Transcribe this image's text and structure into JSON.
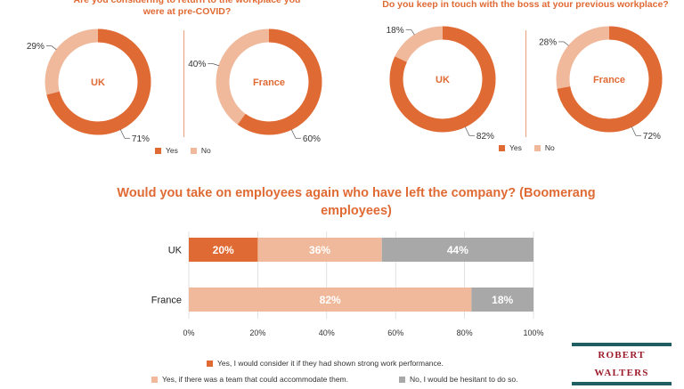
{
  "colors": {
    "yes": "#e06a34",
    "no": "#f0b99b",
    "neutral": "#a8a8a8",
    "accent": "#e06a34"
  },
  "q1": {
    "title": "Are you considering to return to the workplace you were at pre-COVID?",
    "legend": {
      "yes": "Yes",
      "no": "No"
    }
  },
  "q2": {
    "title": "Do you keep in touch with the boss at your previous workplace?",
    "legend": {
      "yes": "Yes",
      "no": "No"
    }
  },
  "boomerang": {
    "title": "Would you take on employees again who have left the company? (Boomerang employees)",
    "legend": [
      "Yes, I would consider it if they had shown strong work performance.",
      "Yes, if there was a team that could accommodate them.",
      "No, I would be hesitant to do so."
    ]
  },
  "logo": {
    "text": "ROBERT WALTERS"
  },
  "chart_data": [
    {
      "type": "pie",
      "variant": "donut",
      "chart": "q1",
      "center_label": "UK",
      "slices": [
        {
          "name": "Yes",
          "value": 71,
          "label": "71%"
        },
        {
          "name": "No",
          "value": 29,
          "label": "29%"
        }
      ]
    },
    {
      "type": "pie",
      "variant": "donut",
      "chart": "q1",
      "center_label": "France",
      "slices": [
        {
          "name": "Yes",
          "value": 60,
          "label": "60%"
        },
        {
          "name": "No",
          "value": 40,
          "label": "40%"
        }
      ]
    },
    {
      "type": "pie",
      "variant": "donut",
      "chart": "q2",
      "center_label": "UK",
      "slices": [
        {
          "name": "Yes",
          "value": 82,
          "label": "82%"
        },
        {
          "name": "No",
          "value": 18,
          "label": "18%"
        }
      ]
    },
    {
      "type": "pie",
      "variant": "donut",
      "chart": "q2",
      "center_label": "France",
      "slices": [
        {
          "name": "Yes",
          "value": 72,
          "label": "72%"
        },
        {
          "name": "No",
          "value": 28,
          "label": "28%"
        }
      ]
    },
    {
      "type": "bar",
      "orientation": "horizontal",
      "stacked": true,
      "title": "Would you take on employees again who have left the company? (Boomerang employees)",
      "categories": [
        "UK",
        "France"
      ],
      "series": [
        {
          "name": "Yes, I would consider it if they had shown strong work performance.",
          "color": "#e06a34",
          "values": [
            20,
            0
          ],
          "labels": [
            "20%",
            ""
          ]
        },
        {
          "name": "Yes, if there was a team that could accommodate them.",
          "color": "#f0b99b",
          "values": [
            36,
            82
          ],
          "labels": [
            "36%",
            "82%"
          ]
        },
        {
          "name": "No, I would be hesitant to do so.",
          "color": "#a8a8a8",
          "values": [
            44,
            18
          ],
          "labels": [
            "44%",
            "18%"
          ]
        }
      ],
      "xlim": [
        0,
        100
      ],
      "xticks": [
        "0%",
        "20%",
        "40%",
        "60%",
        "80%",
        "100%"
      ]
    }
  ]
}
